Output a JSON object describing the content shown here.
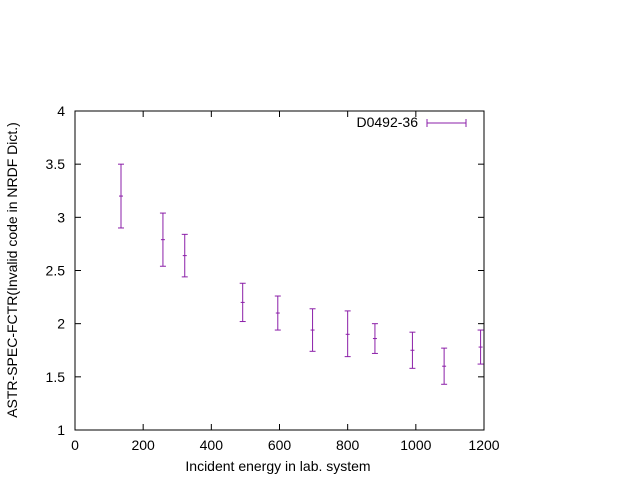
{
  "chart_data": {
    "type": "scatter",
    "title": "",
    "xlabel": "Incident energy in lab. system",
    "ylabel": "ASTR-SPEC-FCTR(Invalid code in NRDF Dict.)",
    "xlim": [
      0,
      1200
    ],
    "ylim": [
      1,
      4
    ],
    "xticks": [
      0,
      200,
      400,
      600,
      800,
      1000,
      1200
    ],
    "yticks": [
      1,
      1.5,
      2,
      2.5,
      3,
      3.5,
      4
    ],
    "xtick_labels": [
      "0",
      "200",
      "400",
      "600",
      "800",
      "1000",
      "1200"
    ],
    "ytick_labels": [
      "1",
      "1.5",
      "2",
      "2.5",
      "3",
      "3.5",
      "4"
    ],
    "grid": false,
    "legend_position": "top-right",
    "series_color": "#8b1fa8",
    "series": [
      {
        "name": "D0492-36",
        "points": [
          {
            "x": 135,
            "y": 3.2,
            "ylo": 2.9,
            "yhi": 3.5
          },
          {
            "x": 258,
            "y": 2.79,
            "ylo": 2.54,
            "yhi": 3.04
          },
          {
            "x": 322,
            "y": 2.64,
            "ylo": 2.44,
            "yhi": 2.84
          },
          {
            "x": 492,
            "y": 2.2,
            "ylo": 2.02,
            "yhi": 2.38
          },
          {
            "x": 595,
            "y": 2.1,
            "ylo": 1.94,
            "yhi": 2.26
          },
          {
            "x": 697,
            "y": 1.94,
            "ylo": 1.74,
            "yhi": 2.14
          },
          {
            "x": 800,
            "y": 1.9,
            "ylo": 1.69,
            "yhi": 2.12
          },
          {
            "x": 880,
            "y": 1.86,
            "ylo": 1.72,
            "yhi": 2.0
          },
          {
            "x": 990,
            "y": 1.75,
            "ylo": 1.58,
            "yhi": 1.92
          },
          {
            "x": 1083,
            "y": 1.6,
            "ylo": 1.43,
            "yhi": 1.77
          },
          {
            "x": 1190,
            "y": 1.78,
            "ylo": 1.62,
            "yhi": 1.94
          }
        ]
      }
    ]
  }
}
